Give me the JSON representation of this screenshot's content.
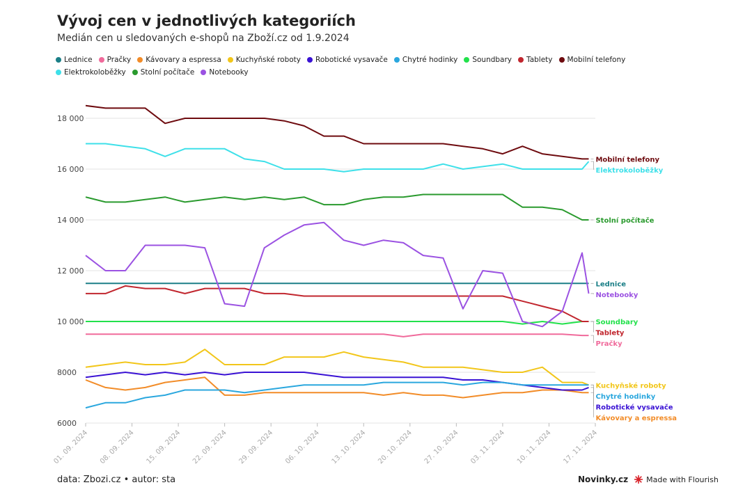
{
  "chart_data": {
    "type": "line",
    "title": "Vývoj cen v jednotlivých kategoriích",
    "subtitle": "Medián cen u sledovaných e-shopů na Zboží.cz od 1.9.2024",
    "footer": "data: Zbozi.cz • autor: sta",
    "brand": "Novinky.cz",
    "credit": "Made with Flourish",
    "grid": true,
    "x": [
      "2024-09-01",
      "2024-09-04",
      "2024-09-07",
      "2024-09-10",
      "2024-09-13",
      "2024-09-16",
      "2024-09-19",
      "2024-09-22",
      "2024-09-25",
      "2024-09-28",
      "2024-10-01",
      "2024-10-04",
      "2024-10-07",
      "2024-10-10",
      "2024-10-13",
      "2024-10-16",
      "2024-10-19",
      "2024-10-22",
      "2024-10-25",
      "2024-10-28",
      "2024-10-31",
      "2024-11-03",
      "2024-11-06",
      "2024-11-09",
      "2024-11-12",
      "2024-11-15",
      "2024-11-16"
    ],
    "xlim": [
      "2024-09-01",
      "2024-11-17"
    ],
    "xticks": [
      {
        "value": "2024-09-01",
        "label": "01. 09. 2024"
      },
      {
        "value": "2024-09-08",
        "label": "08. 09. 2024"
      },
      {
        "value": "2024-09-15",
        "label": "15. 09. 2024"
      },
      {
        "value": "2024-09-22",
        "label": "22. 09. 2024"
      },
      {
        "value": "2024-09-29",
        "label": "29. 09. 2024"
      },
      {
        "value": "2024-10-06",
        "label": "06. 10. 2024"
      },
      {
        "value": "2024-10-13",
        "label": "13. 10. 2024"
      },
      {
        "value": "2024-10-20",
        "label": "20. 10. 2024"
      },
      {
        "value": "2024-10-27",
        "label": "27. 10. 2024"
      },
      {
        "value": "2024-11-03",
        "label": "03. 11. 2024"
      },
      {
        "value": "2024-11-10",
        "label": "10. 11. 2024"
      },
      {
        "value": "2024-11-17",
        "label": "17. 11. 2024"
      }
    ],
    "ylim": [
      6000,
      18800
    ],
    "yticks": [
      6000,
      8000,
      {
        "value": 10000,
        "label": "10 000"
      },
      {
        "value": 12000,
        "label": "12 000"
      },
      {
        "value": 14000,
        "label": "14 000"
      },
      {
        "value": 16000,
        "label": "16 000"
      },
      {
        "value": 18000,
        "label": "18 000"
      }
    ],
    "series": [
      {
        "name": "Lednice",
        "color": "#1b7f87",
        "values": [
          11500,
          11500,
          11500,
          11500,
          11500,
          11500,
          11500,
          11500,
          11500,
          11500,
          11500,
          11500,
          11500,
          11500,
          11500,
          11500,
          11500,
          11500,
          11500,
          11500,
          11500,
          11500,
          11500,
          11500,
          11500,
          11500,
          11500
        ]
      },
      {
        "name": "Pračky",
        "color": "#f06a9b",
        "values": [
          9500,
          9500,
          9500,
          9500,
          9500,
          9500,
          9500,
          9500,
          9500,
          9500,
          9500,
          9500,
          9500,
          9500,
          9500,
          9500,
          9400,
          9500,
          9500,
          9500,
          9500,
          9500,
          9500,
          9500,
          9500,
          9450,
          9450
        ]
      },
      {
        "name": "Kávovary a espressa",
        "color": "#f28c28",
        "values": [
          7700,
          7400,
          7300,
          7400,
          7600,
          7700,
          7800,
          7100,
          7100,
          7200,
          7200,
          7200,
          7200,
          7200,
          7200,
          7100,
          7200,
          7100,
          7100,
          7000,
          7100,
          7200,
          7200,
          7300,
          7300,
          7200,
          7200
        ]
      },
      {
        "name": "Kuchyňské roboty",
        "color": "#f2c61a",
        "values": [
          8200,
          8300,
          8400,
          8300,
          8300,
          8400,
          8900,
          8300,
          8300,
          8300,
          8600,
          8600,
          8600,
          8800,
          8600,
          8500,
          8400,
          8200,
          8200,
          8200,
          8100,
          8000,
          8000,
          8200,
          7600,
          7600,
          7500
        ]
      },
      {
        "name": "Robotické vysavače",
        "color": "#3a12d4",
        "values": [
          7800,
          7900,
          8000,
          7900,
          8000,
          7900,
          8000,
          7900,
          8000,
          8000,
          8000,
          8000,
          7900,
          7800,
          7800,
          7800,
          7800,
          7800,
          7800,
          7700,
          7700,
          7600,
          7500,
          7400,
          7300,
          7300,
          7400
        ]
      },
      {
        "name": "Chytré hodinky",
        "color": "#2aa7de",
        "values": [
          6600,
          6800,
          6800,
          7000,
          7100,
          7300,
          7300,
          7300,
          7200,
          7300,
          7400,
          7500,
          7500,
          7500,
          7500,
          7600,
          7600,
          7600,
          7600,
          7500,
          7600,
          7600,
          7500,
          7500,
          7500,
          7500,
          7500
        ]
      },
      {
        "name": "Soundbary",
        "color": "#22e14b",
        "values": [
          10000,
          10000,
          10000,
          10000,
          10000,
          10000,
          10000,
          10000,
          10000,
          10000,
          10000,
          10000,
          10000,
          10000,
          10000,
          10000,
          10000,
          10000,
          10000,
          10000,
          10000,
          10000,
          9900,
          10000,
          9900,
          10000,
          10000
        ]
      },
      {
        "name": "Tablety",
        "color": "#c1262e",
        "values": [
          11100,
          11100,
          11400,
          11300,
          11300,
          11100,
          11300,
          11300,
          11300,
          11100,
          11100,
          11000,
          11000,
          11000,
          11000,
          11000,
          11000,
          11000,
          11000,
          11000,
          11000,
          11000,
          10800,
          10600,
          10400,
          10000,
          10000
        ]
      },
      {
        "name": "Mobilní telefony",
        "color": "#6e0b0f",
        "values": [
          18500,
          18400,
          18400,
          18400,
          17800,
          18000,
          18000,
          18000,
          18000,
          18000,
          17900,
          17700,
          17300,
          17300,
          17000,
          17000,
          17000,
          17000,
          17000,
          16900,
          16800,
          16600,
          16900,
          16600,
          16500,
          16400,
          16400
        ]
      },
      {
        "name": "Elektrokoloběžky",
        "color": "#3ee0e9",
        "values": [
          17000,
          17000,
          16900,
          16800,
          16500,
          16800,
          16800,
          16800,
          16400,
          16300,
          16000,
          16000,
          16000,
          15900,
          16000,
          16000,
          16000,
          16000,
          16200,
          16000,
          16100,
          16200,
          16000,
          16000,
          16000,
          16000,
          16300
        ]
      },
      {
        "name": "Stolní počítače",
        "color": "#2a9a2e",
        "values": [
          14900,
          14700,
          14700,
          14800,
          14900,
          14700,
          14800,
          14900,
          14800,
          14900,
          14800,
          14900,
          14600,
          14600,
          14800,
          14900,
          14900,
          15000,
          15000,
          15000,
          15000,
          15000,
          14500,
          14500,
          14400,
          14000,
          14000
        ]
      },
      {
        "name": "Notebooky",
        "color": "#9b52e2",
        "values": [
          12600,
          12000,
          12000,
          13000,
          13000,
          13000,
          12900,
          10700,
          10600,
          12900,
          13400,
          13800,
          13900,
          13200,
          13000,
          13200,
          13100,
          12600,
          12500,
          10500,
          12000,
          11900,
          10000,
          9800,
          10400,
          12700,
          11100
        ]
      }
    ]
  }
}
